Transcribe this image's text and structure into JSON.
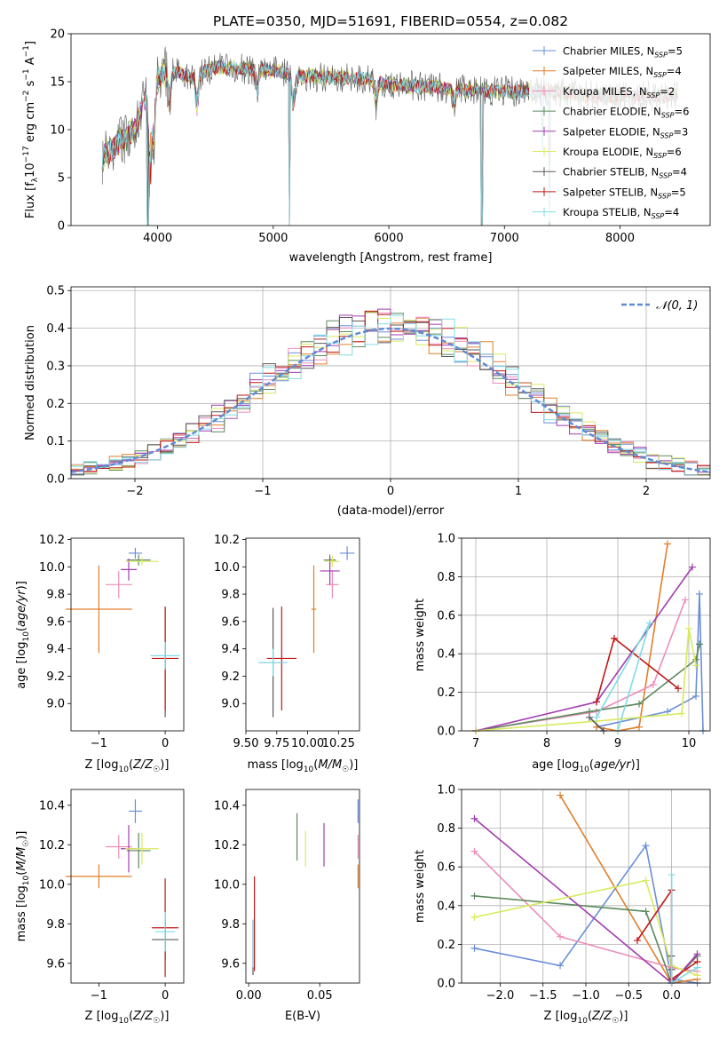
{
  "figure_title": "PLATE=0350, MJD=51691, FIBERID=0554, z=0.082",
  "chart_data": [
    {
      "id": "spectrum",
      "type": "line",
      "xlabel": "wavelength [Angstrom, rest frame]",
      "ylabel": "Flux [f_λ10^-17 erg cm^-2 s^-1 A^-1]",
      "xlim": [
        3250,
        8780
      ],
      "ylim": [
        0,
        20
      ],
      "xticks": [
        4000,
        5000,
        6000,
        7000,
        8000
      ],
      "yticks": [
        0,
        5,
        10,
        15,
        20
      ],
      "grid": false,
      "legend_position": "right",
      "legend": [
        {
          "name": "Chabrier MILES, N_SSP=5",
          "color": "#6a8ed9"
        },
        {
          "name": "Salpeter MILES, N_SSP=4",
          "color": "#e07f2a"
        },
        {
          "name": "Kroupa MILES, N_SSP=2",
          "color": "#ee8dba"
        },
        {
          "name": "Chabrier ELODIE, N_SSP=6",
          "color": "#5e8a5e"
        },
        {
          "name": "Salpeter ELODIE, N_SSP=3",
          "color": "#a23cb0"
        },
        {
          "name": "Kroupa ELODIE, N_SSP=6",
          "color": "#d8ea5c"
        },
        {
          "name": "Chabrier STELIB, N_SSP=4",
          "color": "#5a5a5a"
        },
        {
          "name": "Salpeter STELIB, N_SSP=5",
          "color": "#c01818"
        },
        {
          "name": "Kroupa STELIB, N_SSP=4",
          "color": "#7fdbe6"
        }
      ],
      "continuum": [
        [
          3500,
          7.0
        ],
        [
          3600,
          7.8
        ],
        [
          3700,
          9.0
        ],
        [
          3800,
          10.0
        ],
        [
          3900,
          13.5
        ],
        [
          4000,
          15.5
        ],
        [
          4100,
          16.2
        ],
        [
          4300,
          15.5
        ],
        [
          4500,
          16.5
        ],
        [
          4800,
          16.3
        ],
        [
          5000,
          16.2
        ],
        [
          5200,
          15.6
        ],
        [
          5500,
          15.5
        ],
        [
          5800,
          15.3
        ],
        [
          6000,
          14.7
        ],
        [
          6300,
          14.5
        ],
        [
          6600,
          14.2
        ],
        [
          7000,
          14.0
        ],
        [
          7400,
          14.0
        ],
        [
          7800,
          13.5
        ],
        [
          8200,
          13.5
        ],
        [
          8500,
          13.5
        ]
      ]
    },
    {
      "id": "residuals",
      "type": "histogram",
      "xlabel": "(data-model)/error",
      "ylabel": "Normed distribution",
      "xlim": [
        -2.5,
        2.5
      ],
      "ylim": [
        0,
        0.51
      ],
      "xticks": [
        -2,
        -1,
        0,
        1,
        2
      ],
      "yticks": [
        0.0,
        0.1,
        0.2,
        0.3,
        0.4,
        0.5
      ],
      "grid": true,
      "legend_position": "top-right",
      "reference_curve": {
        "label": "𝒩(0, 1)",
        "color": "#5f8bd4",
        "mean": 0,
        "sigma": 1
      }
    },
    {
      "id": "age-vs-Z",
      "type": "errorbar",
      "xlabel": "Z [log10(Z/Z☉)]",
      "ylabel": "age [log10(age/yr)]",
      "xlim": [
        -1.42,
        0.28
      ],
      "ylim": [
        8.8,
        10.21
      ],
      "xticks": [
        -1,
        0
      ],
      "yticks": [
        9.0,
        9.2,
        9.4,
        9.6,
        9.8,
        10.0,
        10.2
      ],
      "points": [
        {
          "color": "#6a8ed9",
          "x": -0.45,
          "y": 10.1,
          "xerr": 0.1,
          "yerr": 0.04
        },
        {
          "color": "#e07f2a",
          "x": -1.0,
          "y": 9.69,
          "xerr": 0.5,
          "yerr": 0.32
        },
        {
          "color": "#ee8dba",
          "x": -0.7,
          "y": 9.87,
          "xerr": 0.2,
          "yerr": 0.1
        },
        {
          "color": "#5e8a5e",
          "x": -0.4,
          "y": 10.05,
          "xerr": 0.18,
          "yerr": 0.04
        },
        {
          "color": "#a23cb0",
          "x": -0.55,
          "y": 9.98,
          "xerr": 0.12,
          "yerr": 0.08
        },
        {
          "color": "#d8ea5c",
          "x": -0.35,
          "y": 10.04,
          "xerr": 0.25,
          "yerr": 0.03
        },
        {
          "color": "#5a5a5a",
          "x": 0.0,
          "y": 9.3,
          "xerr": 0.0,
          "yerr": 0.4
        },
        {
          "color": "#c01818",
          "x": 0.0,
          "y": 9.33,
          "xerr": 0.2,
          "yerr": 0.38
        },
        {
          "color": "#7fdbe6",
          "x": 0.0,
          "y": 9.35,
          "xerr": 0.22,
          "yerr": 0.1
        }
      ]
    },
    {
      "id": "age-vs-mass",
      "type": "errorbar",
      "xlabel": "mass [log10(M/M☉)]",
      "ylabel": "",
      "xlim": [
        9.5,
        10.42
      ],
      "ylim": [
        8.8,
        10.21
      ],
      "xticks": [
        9.5,
        9.75,
        10.0,
        10.25
      ],
      "xticklabels": [
        "9.50",
        "9.75",
        "10.00",
        "10.25"
      ],
      "yticks": [
        9.0,
        9.2,
        9.4,
        9.6,
        9.8,
        10.0,
        10.2
      ],
      "points": [
        {
          "color": "#6a8ed9",
          "x": 10.32,
          "y": 10.1,
          "xerr": 0.06,
          "yerr": 0.05
        },
        {
          "color": "#e07f2a",
          "x": 10.05,
          "y": 9.69,
          "xerr": 0.02,
          "yerr": 0.32
        },
        {
          "color": "#ee8dba",
          "x": 10.2,
          "y": 9.87,
          "xerr": 0.05,
          "yerr": 0.1
        },
        {
          "color": "#5e8a5e",
          "x": 10.18,
          "y": 10.05,
          "xerr": 0.05,
          "yerr": 0.04
        },
        {
          "color": "#a23cb0",
          "x": 10.18,
          "y": 9.97,
          "xerr": 0.08,
          "yerr": 0.1
        },
        {
          "color": "#d8ea5c",
          "x": 10.2,
          "y": 10.04,
          "xerr": 0.06,
          "yerr": 0.04
        },
        {
          "color": "#5a5a5a",
          "x": 9.72,
          "y": 9.3,
          "xerr": 0.1,
          "yerr": 0.4
        },
        {
          "color": "#c01818",
          "x": 9.79,
          "y": 9.33,
          "xerr": 0.12,
          "yerr": 0.38
        },
        {
          "color": "#7fdbe6",
          "x": 9.72,
          "y": 9.3,
          "xerr": 0.12,
          "yerr": 0.1
        }
      ]
    },
    {
      "id": "weight-vs-age",
      "type": "line",
      "xlabel": "age [log10(age/yr)]",
      "ylabel": "mass weight",
      "xlim": [
        6.8,
        10.3
      ],
      "ylim": [
        0,
        1.0
      ],
      "xticks": [
        7,
        8,
        9,
        10
      ],
      "yticks": [
        0.0,
        0.2,
        0.4,
        0.6,
        0.8,
        1.0
      ],
      "grid": true,
      "series": [
        {
          "color": "#6a8ed9",
          "points": [
            [
              8.7,
              0.02
            ],
            [
              9.7,
              0.1
            ],
            [
              10.1,
              0.18
            ],
            [
              10.15,
              0.71
            ],
            [
              10.2,
              0.0
            ]
          ]
        },
        {
          "color": "#e07f2a",
          "points": [
            [
              8.7,
              0.02
            ],
            [
              9.0,
              0.0
            ],
            [
              9.3,
              0.02
            ],
            [
              9.7,
              0.97
            ]
          ]
        },
        {
          "color": "#ee8dba",
          "points": [
            [
              7.0,
              0.0
            ],
            [
              8.7,
              0.1
            ],
            [
              9.5,
              0.24
            ],
            [
              9.95,
              0.68
            ]
          ]
        },
        {
          "color": "#5e8a5e",
          "points": [
            [
              7.0,
              0.0
            ],
            [
              8.6,
              0.1
            ],
            [
              9.3,
              0.14
            ],
            [
              10.1,
              0.37
            ],
            [
              10.15,
              0.45
            ]
          ]
        },
        {
          "color": "#a23cb0",
          "points": [
            [
              7.0,
              0.0
            ],
            [
              8.7,
              0.15
            ],
            [
              10.05,
              0.85
            ]
          ]
        },
        {
          "color": "#d8ea5c",
          "points": [
            [
              7.0,
              0.0
            ],
            [
              8.7,
              0.05
            ],
            [
              9.9,
              0.09
            ],
            [
              10.0,
              0.53
            ],
            [
              10.1,
              0.34
            ]
          ]
        },
        {
          "color": "#5a5a5a",
          "points": [
            [
              8.6,
              0.07
            ],
            [
              8.8,
              0.0
            ]
          ]
        },
        {
          "color": "#c01818",
          "points": [
            [
              8.7,
              0.15
            ],
            [
              8.95,
              0.48
            ],
            [
              9.85,
              0.22
            ]
          ]
        },
        {
          "color": "#7fdbe6",
          "points": [
            [
              8.7,
              0.07
            ],
            [
              9.45,
              0.56
            ],
            [
              9.0,
              0.0
            ]
          ]
        }
      ]
    },
    {
      "id": "mass-vs-Z",
      "type": "errorbar",
      "xlabel": "Z [log10(Z/Z☉)]",
      "ylabel": "mass [log10(M/M☉)]",
      "xlim": [
        -1.42,
        0.28
      ],
      "ylim": [
        9.5,
        10.48
      ],
      "xticks": [
        -1,
        0
      ],
      "yticks": [
        9.6,
        9.8,
        10.0,
        10.2,
        10.4
      ],
      "points": [
        {
          "color": "#6a8ed9",
          "x": -0.45,
          "y": 10.37,
          "xerr": 0.1,
          "yerr": 0.06
        },
        {
          "color": "#e07f2a",
          "x": -1.0,
          "y": 10.04,
          "xerr": 0.5,
          "yerr": 0.06
        },
        {
          "color": "#ee8dba",
          "x": -0.7,
          "y": 10.19,
          "xerr": 0.2,
          "yerr": 0.06
        },
        {
          "color": "#5e8a5e",
          "x": -0.4,
          "y": 10.17,
          "xerr": 0.18,
          "yerr": 0.09
        },
        {
          "color": "#a23cb0",
          "x": -0.55,
          "y": 10.18,
          "xerr": 0.12,
          "yerr": 0.12
        },
        {
          "color": "#d8ea5c",
          "x": -0.35,
          "y": 10.18,
          "xerr": 0.25,
          "yerr": 0.08
        },
        {
          "color": "#5a5a5a",
          "x": 0.0,
          "y": 9.72,
          "xerr": 0.2,
          "yerr": 0.1
        },
        {
          "color": "#c01818",
          "x": 0.0,
          "y": 9.78,
          "xerr": 0.2,
          "yerr": 0.25
        },
        {
          "color": "#7fdbe6",
          "x": 0.0,
          "y": 9.76,
          "xerr": 0.15,
          "yerr": 0.1
        }
      ]
    },
    {
      "id": "mass-vs-EBV",
      "type": "errorbar",
      "xlabel": "E(B-V)",
      "ylabel": "",
      "xlim": [
        -0.002,
        0.078
      ],
      "ylim": [
        9.5,
        10.48
      ],
      "xticks": [
        0.0,
        0.05
      ],
      "xticklabels": [
        "0.00",
        "0.05"
      ],
      "yticks": [
        9.6,
        9.8,
        10.0,
        10.2,
        10.4
      ],
      "points": [
        {
          "color": "#6a8ed9",
          "x": 0.077,
          "y": 10.37,
          "xerr": 0,
          "yerr": 0.06
        },
        {
          "color": "#e07f2a",
          "x": 0.077,
          "y": 10.04,
          "xerr": 0,
          "yerr": 0.06
        },
        {
          "color": "#ee8dba",
          "x": 0.077,
          "y": 10.19,
          "xerr": 0,
          "yerr": 0.06
        },
        {
          "color": "#5e8a5e",
          "x": 0.034,
          "y": 10.24,
          "xerr": 0,
          "yerr": 0.12
        },
        {
          "color": "#a23cb0",
          "x": 0.053,
          "y": 10.2,
          "xerr": 0,
          "yerr": 0.11
        },
        {
          "color": "#d8ea5c",
          "x": 0.04,
          "y": 10.18,
          "xerr": 0,
          "yerr": 0.09
        },
        {
          "color": "#5a5a5a",
          "x": 0.003,
          "y": 9.68,
          "xerr": 0,
          "yerr": 0.14
        },
        {
          "color": "#c01818",
          "x": 0.004,
          "y": 9.8,
          "xerr": 0,
          "yerr": 0.24
        },
        {
          "color": "#7fdbe6",
          "x": 0.003,
          "y": 9.7,
          "xerr": 0,
          "yerr": 0.12
        }
      ]
    },
    {
      "id": "weight-vs-Z",
      "type": "line",
      "xlabel": "Z [log10(Z/Z☉)]",
      "ylabel": "mass weight",
      "xlim": [
        -2.45,
        0.45
      ],
      "ylim": [
        0,
        1.0
      ],
      "xticks": [
        -2.0,
        -1.5,
        -1.0,
        -0.5,
        0.0
      ],
      "xticklabels": [
        "−2.0",
        "−1.5",
        "−1.0",
        "−0.5",
        "0.0"
      ],
      "yticks": [
        0.0,
        0.2,
        0.4,
        0.6,
        0.8,
        1.0
      ],
      "grid": true,
      "series": [
        {
          "color": "#6a8ed9",
          "points": [
            [
              -2.3,
              0.18
            ],
            [
              -1.3,
              0.09
            ],
            [
              -0.3,
              0.71
            ],
            [
              0.0,
              0.02
            ],
            [
              0.3,
              0.0
            ]
          ]
        },
        {
          "color": "#e07f2a",
          "points": [
            [
              -1.3,
              0.97
            ],
            [
              0.0,
              0.0
            ],
            [
              0.3,
              0.02
            ]
          ]
        },
        {
          "color": "#ee8dba",
          "points": [
            [
              -2.3,
              0.68
            ],
            [
              -1.3,
              0.24
            ],
            [
              0.0,
              0.08
            ],
            [
              0.3,
              0.06
            ]
          ]
        },
        {
          "color": "#5e8a5e",
          "points": [
            [
              -2.3,
              0.45
            ],
            [
              -0.3,
              0.37
            ],
            [
              0.0,
              0.0
            ],
            [
              0.3,
              0.14
            ]
          ]
        },
        {
          "color": "#a23cb0",
          "points": [
            [
              -2.3,
              0.85
            ],
            [
              0.0,
              0.0
            ],
            [
              0.3,
              0.15
            ]
          ]
        },
        {
          "color": "#d8ea5c",
          "points": [
            [
              -2.3,
              0.34
            ],
            [
              -0.3,
              0.53
            ],
            [
              0.0,
              0.09
            ],
            [
              0.3,
              0.04
            ]
          ]
        },
        {
          "color": "#5a5a5a",
          "points": [
            [
              0.0,
              0.07
            ],
            [
              0.0,
              0.14
            ]
          ]
        },
        {
          "color": "#c01818",
          "points": [
            [
              -0.4,
              0.22
            ],
            [
              0.0,
              0.48
            ],
            [
              0.0,
              0.02
            ],
            [
              0.3,
              0.11
            ]
          ]
        },
        {
          "color": "#7fdbe6",
          "points": [
            [
              0.0,
              0.56
            ],
            [
              0.0,
              0.0
            ],
            [
              0.3,
              0.08
            ]
          ]
        }
      ]
    }
  ]
}
